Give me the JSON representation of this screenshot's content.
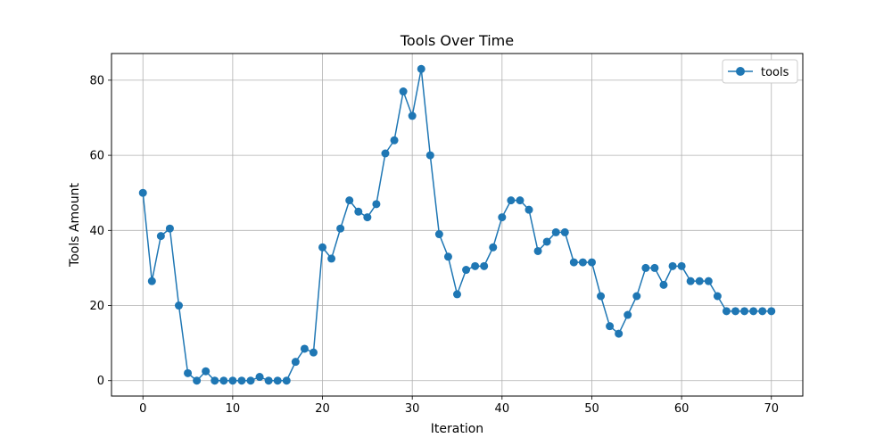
{
  "chart_data": {
    "type": "line",
    "title": "Tools Over Time",
    "xlabel": "Iteration",
    "ylabel": "Tools Amount",
    "xlim": [
      -3.5,
      73.5
    ],
    "ylim": [
      -4.1,
      87.1
    ],
    "x_ticks": [
      0,
      10,
      20,
      30,
      40,
      50,
      60,
      70
    ],
    "y_ticks": [
      0,
      20,
      40,
      60,
      80
    ],
    "grid": true,
    "legend_position": "top-right",
    "series": [
      {
        "name": "tools",
        "color": "#1f77b4",
        "marker": "circle",
        "x": [
          0,
          1,
          2,
          3,
          4,
          5,
          6,
          7,
          8,
          9,
          10,
          11,
          12,
          13,
          14,
          15,
          16,
          17,
          18,
          19,
          20,
          21,
          22,
          23,
          24,
          25,
          26,
          27,
          28,
          29,
          30,
          31,
          32,
          33,
          34,
          35,
          36,
          37,
          38,
          39,
          40,
          41,
          42,
          43,
          44,
          45,
          46,
          47,
          48,
          49,
          50,
          51,
          52,
          53,
          54,
          55,
          56,
          57,
          58,
          59,
          60,
          61,
          62,
          63,
          64,
          65,
          66,
          67,
          68,
          69,
          70
        ],
        "values": [
          50,
          26.5,
          38.5,
          40.5,
          20,
          2,
          0,
          2.5,
          0,
          0,
          0,
          0,
          0,
          1,
          0,
          0,
          0,
          5,
          8.5,
          7.5,
          35.5,
          32.5,
          40.5,
          48,
          45,
          43.5,
          47,
          60.5,
          64,
          77,
          70.5,
          83,
          60,
          39,
          33,
          23,
          29.5,
          30.5,
          30.5,
          35.5,
          43.5,
          48,
          48,
          45.5,
          34.5,
          37,
          39.5,
          39.5,
          31.5,
          31.5,
          31.5,
          22.5,
          14.5,
          12.5,
          17.5,
          22.5,
          30,
          30,
          25.5,
          30.5,
          30.5,
          26.5,
          26.5,
          26.5,
          22.5,
          18.5,
          18.5,
          18.5,
          18.5,
          18.5,
          18.5
        ]
      }
    ]
  }
}
